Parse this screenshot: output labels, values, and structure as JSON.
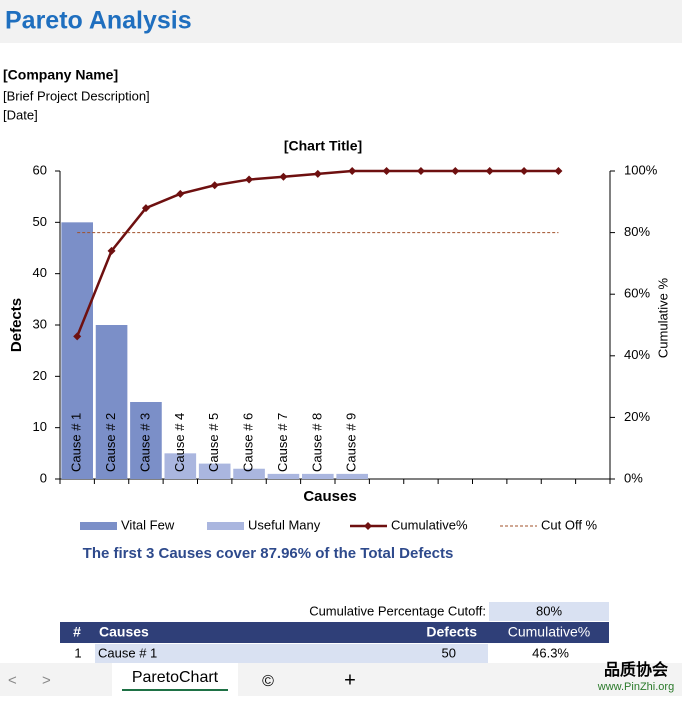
{
  "header": {
    "title": "Pareto Analysis",
    "company": "[Company Name]",
    "description": "[Brief Project Description]",
    "date": "[Date]"
  },
  "chart_data": {
    "type": "pareto",
    "title": "[Chart Title]",
    "x_label": "Causes",
    "y_label": "Defects",
    "y2_label": "Cumulative %",
    "categories": [
      "Cause # 1",
      "Cause # 2",
      "Cause # 3",
      "Cause # 4",
      "Cause # 5",
      "Cause # 6",
      "Cause # 7",
      "Cause # 8",
      "Cause # 9",
      null,
      null,
      null,
      null,
      null,
      null,
      null
    ],
    "series": [
      {
        "name": "Vital Few",
        "type": "bar",
        "color": "#7b8fc8",
        "values": [
          50,
          30,
          15,
          null,
          null,
          null,
          null,
          null,
          null,
          null,
          null,
          null,
          null,
          null,
          null,
          null
        ]
      },
      {
        "name": "Useful Many",
        "type": "bar",
        "color": "#aab6df",
        "values": [
          null,
          null,
          null,
          5,
          3,
          2,
          1,
          1,
          1,
          null,
          null,
          null,
          null,
          null,
          null,
          null
        ]
      },
      {
        "name": "Cumulative%",
        "type": "line",
        "axis": "y2",
        "color": "#6e1010",
        "marker": "diamond",
        "values": [
          46.3,
          74.07,
          87.96,
          92.59,
          95.37,
          97.22,
          98.15,
          99.07,
          100,
          100,
          100,
          100,
          100,
          100,
          100,
          null
        ]
      },
      {
        "name": "Cut Off %",
        "type": "line",
        "axis": "y2",
        "color": "#a0502a",
        "dashed": true,
        "values": [
          80,
          80,
          80,
          80,
          80,
          80,
          80,
          80,
          80,
          80,
          80,
          80,
          80,
          80,
          80,
          null
        ]
      }
    ],
    "ylim": [
      0,
      60
    ],
    "yticks": [
      0,
      10,
      20,
      30,
      40,
      50,
      60
    ],
    "y2lim": [
      0,
      100
    ],
    "y2ticks": [
      {
        "value": 0,
        "label": "0%"
      },
      {
        "value": 20,
        "label": "20%"
      },
      {
        "value": 40,
        "label": "40%"
      },
      {
        "value": 60,
        "label": "60%"
      },
      {
        "value": 80,
        "label": "80%"
      },
      {
        "value": 100,
        "label": "100%"
      }
    ],
    "grid": false,
    "legend": "bottom",
    "annotation": "The first 3 Causes cover 87.96% of the Total Defects"
  },
  "table": {
    "cutoff_label": "Cumulative Percentage Cutoff:",
    "cutoff_value": "80%",
    "columns": [
      "#",
      "Causes",
      "Defects",
      "Cumulative%"
    ],
    "rows": [
      [
        "1",
        "Cause # 1",
        "50",
        "46.3%"
      ]
    ]
  },
  "tabs": {
    "active": "ParetoChart",
    "copyright": "©",
    "add": "+",
    "prev": "<",
    "next": ">"
  },
  "watermark": {
    "name": "品质协会",
    "url": "www.PinZhi.org"
  }
}
